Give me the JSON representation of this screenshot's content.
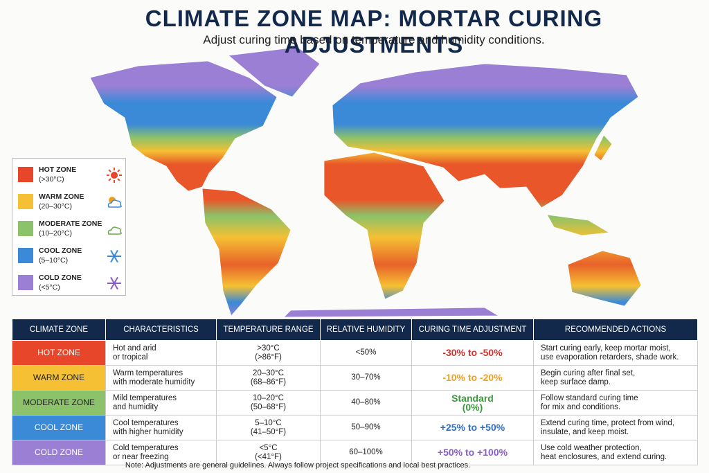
{
  "header": {
    "title": "CLIMATE ZONE MAP: MORTAR CURING ADJUSTMENTS",
    "subtitle": "Adjust curing time based on temperature and humidity conditions."
  },
  "legend": [
    {
      "label": "HOT ZONE",
      "range": "(>30°C)"
    },
    {
      "label": "WARM ZONE",
      "range": "(20–30°C)"
    },
    {
      "label": "MODERATE ZONE",
      "range": "(10–20°C)"
    },
    {
      "label": "COOL ZONE",
      "range": "(5–10°C)"
    },
    {
      "label": "COLD ZONE",
      "range": "(<5°C)"
    }
  ],
  "table": {
    "columns": [
      "CLIMATE ZONE",
      "CHARACTERISTICS",
      "TEMPERATURE RANGE",
      "RELATIVE HUMIDITY",
      "CURING TIME ADJUSTMENT",
      "RECOMMENDED ACTIONS"
    ],
    "rows": [
      {
        "zone": "HOT ZONE",
        "characteristics": [
          "Hot and arid",
          "or tropical"
        ],
        "temperature": [
          ">30°C",
          "(>86°F)"
        ],
        "humidity": "<50%",
        "adjustment": [
          "-30% to -50%"
        ],
        "actions": [
          "Start curing early, keep mortar moist,",
          "use evaporation retarders, shade work."
        ]
      },
      {
        "zone": "WARM ZONE",
        "characteristics": [
          "Warm temperatures",
          "with moderate humidity"
        ],
        "temperature": [
          "20–30°C",
          "(68–86°F)"
        ],
        "humidity": "30–70%",
        "adjustment": [
          "-10% to -20%"
        ],
        "actions": [
          "Begin curing after final set,",
          "keep surface damp."
        ]
      },
      {
        "zone": "MODERATE ZONE",
        "characteristics": [
          "Mild temperatures",
          "and humidity"
        ],
        "temperature": [
          "10–20°C",
          "(50–68°F)"
        ],
        "humidity": "40–80%",
        "adjustment": [
          "Standard",
          "(0%)"
        ],
        "actions": [
          "Follow standard curing time",
          "for mix and conditions."
        ]
      },
      {
        "zone": "COOL ZONE",
        "characteristics": [
          "Cool temperatures",
          "with higher humidity"
        ],
        "temperature": [
          "5–10°C",
          "(41–50°F)"
        ],
        "humidity": "50–90%",
        "adjustment": [
          "+25% to +50%"
        ],
        "actions": [
          "Extend curing time, protect from wind,",
          "insulate, and keep moist."
        ]
      },
      {
        "zone": "COLD ZONE",
        "characteristics": [
          "Cold temperatures",
          "or near freezing"
        ],
        "temperature": [
          "<5°C",
          "(<41°F)"
        ],
        "humidity": "60–100%",
        "adjustment": [
          "+50% to +100%"
        ],
        "actions": [
          "Use cold weather protection,",
          "heat enclosures, and extend curing."
        ]
      }
    ]
  },
  "note": "Note: Adjustments are general guidelines. Always follow project specifications and local best practices."
}
